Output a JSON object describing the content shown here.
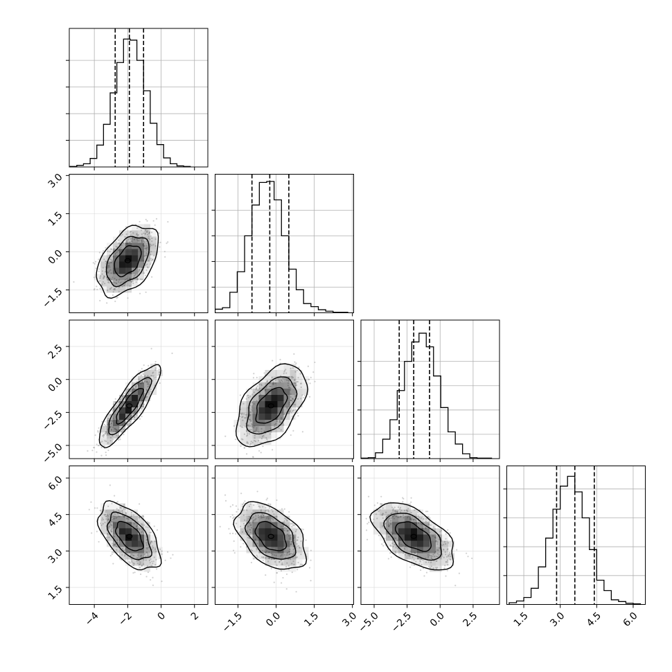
{
  "chart_data": {
    "type": "corner",
    "parameters": [
      {
        "ticks": [
          -4,
          -2,
          0,
          2
        ],
        "tick_labels": [
          "−4",
          "−2",
          "0",
          "2"
        ],
        "range": [
          -5.5,
          2.8
        ],
        "quantiles": [
          -2.75,
          -1.9,
          -1.05
        ],
        "hist": {
          "start": -5.45,
          "width": 0.4,
          "counts": [
            1,
            3,
            6,
            16,
            41,
            80,
            139,
            196,
            240,
            238,
            200,
            143,
            82,
            42,
            17,
            6,
            2,
            1
          ],
          "ymax": 260
        }
      },
      {
        "ticks": [
          -1.5,
          0.0,
          1.5,
          3.0
        ],
        "tick_labels": [
          "−1.5",
          "0.0",
          "1.5",
          "3.0"
        ],
        "range": [
          -2.4,
          3.05
        ],
        "quantiles": [
          -0.95,
          -0.25,
          0.5
        ],
        "hist": {
          "start": -2.4,
          "width": 0.29,
          "counts": [
            7,
            10,
            40,
            80,
            150,
            210,
            254,
            256,
            220,
            150,
            85,
            45,
            18,
            12,
            6,
            3,
            1,
            1
          ],
          "ymax": 270
        }
      },
      {
        "ticks": [
          -5.0,
          -2.5,
          0.0,
          2.5
        ],
        "tick_labels": [
          "−5.0",
          "−2.5",
          "0.0",
          "2.5"
        ],
        "range": [
          -6.0,
          4.5
        ],
        "quantiles": [
          -3.1,
          -2.0,
          -0.8
        ],
        "hist": {
          "start": -6.0,
          "width": 0.55,
          "counts": [
            1,
            2,
            12,
            40,
            80,
            140,
            200,
            240,
            258,
            230,
            170,
            105,
            55,
            30,
            10,
            2,
            1,
            1
          ],
          "ymax": 285
        }
      },
      {
        "ticks": [
          1.5,
          3.0,
          4.5,
          6.0
        ],
        "tick_labels": [
          "1.5",
          "3.0",
          "4.5",
          "6.0"
        ],
        "range": [
          0.8,
          6.5
        ],
        "quantiles": [
          2.85,
          3.6,
          4.4
        ],
        "hist": {
          "start": 0.9,
          "width": 0.3,
          "counts": [
            3,
            6,
            12,
            28,
            65,
            115,
            165,
            205,
            222,
            195,
            150,
            95,
            42,
            24,
            8,
            5,
            2,
            1
          ],
          "ymax": 240
        }
      }
    ],
    "pairs": [
      {
        "row": 1,
        "col": 0,
        "mean": [
          -2.0,
          -0.35
        ],
        "sd": [
          0.8,
          0.6
        ],
        "rho": 0.45
      },
      {
        "row": 2,
        "col": 0,
        "mean": [
          -1.9,
          -2.0
        ],
        "sd": [
          0.8,
          1.35
        ],
        "rho": 0.85
      },
      {
        "row": 2,
        "col": 1,
        "mean": [
          -0.2,
          -2.0
        ],
        "sd": [
          0.6,
          1.35
        ],
        "rho": 0.5
      },
      {
        "row": 3,
        "col": 0,
        "mean": [
          -1.9,
          3.6
        ],
        "sd": [
          0.8,
          0.6
        ],
        "rho": -0.55
      },
      {
        "row": 3,
        "col": 1,
        "mean": [
          -0.2,
          3.6
        ],
        "sd": [
          0.6,
          0.6
        ],
        "rho": -0.45
      },
      {
        "row": 3,
        "col": 2,
        "mean": [
          -2.0,
          3.6
        ],
        "sd": [
          1.35,
          0.6
        ],
        "rho": -0.55
      }
    ],
    "contour_levels": [
      1.0,
      1.6,
      2.3
    ],
    "grid": true,
    "colors": {
      "line": "#000000",
      "grid": "#b0b0b0",
      "points": "#9a9a9a",
      "density": "#000000"
    }
  }
}
